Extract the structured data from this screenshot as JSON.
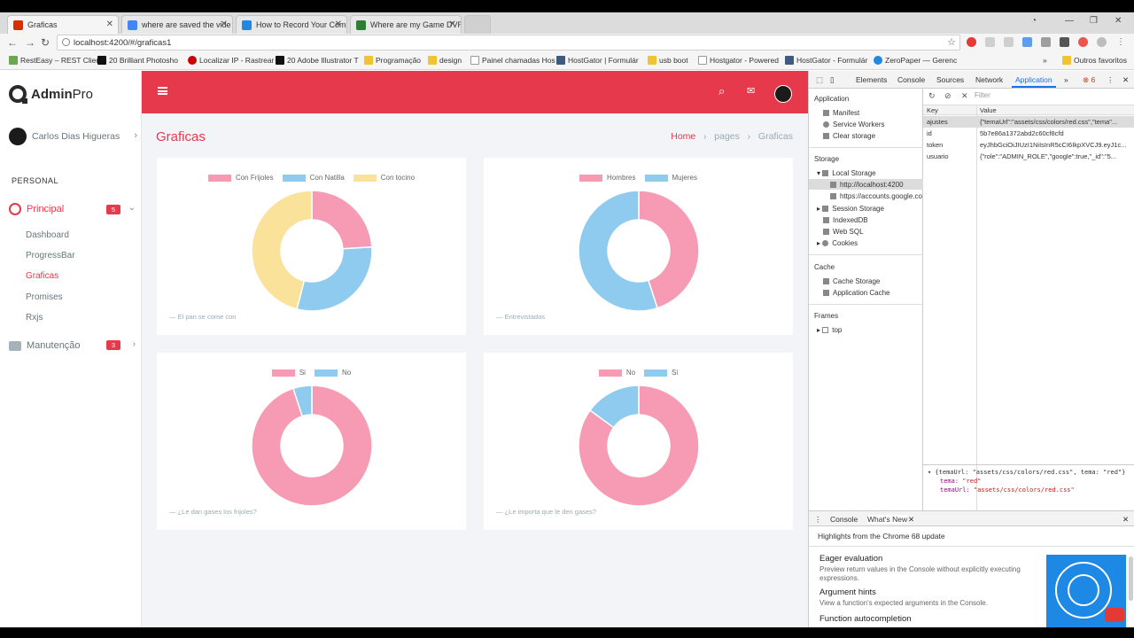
{
  "browser": {
    "tabs": [
      {
        "title": "Graficas",
        "color": "#dd2c00"
      },
      {
        "title": "where are saved the vide",
        "color": "#4285f4"
      },
      {
        "title": "How to Record Your Com",
        "color": "#1e88e5"
      },
      {
        "title": "Where are my Game DVR",
        "color": "#2e7d32"
      }
    ],
    "url": "localhost:4200/#/graficas1",
    "bookmarks": [
      {
        "label": "RestEasy – REST Clien",
        "color": "#6aa84f"
      },
      {
        "label": "20 Brilliant Photosho",
        "color": "#111111"
      },
      {
        "label": "Localizar IP - Rastrear",
        "color": "#cc0000"
      },
      {
        "label": "20 Adobe Illustrator T",
        "color": "#111111"
      },
      {
        "label": "Programação",
        "color": "#f1c232"
      },
      {
        "label": "design",
        "color": "#f1c232"
      },
      {
        "label": "Painel chamadas Hos",
        "color": "#999999"
      },
      {
        "label": "HostGator | Formulár",
        "color": "#3d5a80"
      },
      {
        "label": "usb boot",
        "color": "#f1c232"
      },
      {
        "label": "Hostgator - Powered",
        "color": "#999999"
      },
      {
        "label": "HostGator - Formulár",
        "color": "#3d5a80"
      },
      {
        "label": "ZeroPaper — Gerenc",
        "color": "#1e88e5"
      },
      {
        "label": "Outros favoritos",
        "color": "#f1c232"
      }
    ]
  },
  "app": {
    "logo_bold": "Admin",
    "logo_light": "Pro",
    "user_name": "Carlos Dias Higueras",
    "section": "PERSONAL",
    "menu_principal": "Principal",
    "menu_principal_badge": "5",
    "submenu": [
      "Dashboard",
      "ProgressBar",
      "Graficas",
      "Promises",
      "Rxjs"
    ],
    "menu_maintenance": "Manutenção",
    "menu_maintenance_badge": "3",
    "page_title": "Graficas",
    "breadcrumb": {
      "home": "Home",
      "pages": "pages",
      "current": "Graficas"
    },
    "accent": "#e6394b"
  },
  "charts": [
    {
      "caption": "— El pan se come con",
      "chart_data": {
        "type": "pie",
        "donut": true,
        "labels": [
          "Con Frijoles",
          "Con Natilla",
          "Con tocino"
        ],
        "values": [
          24,
          30,
          46
        ],
        "colors": [
          "#f79ab3",
          "#8fcbef",
          "#fbe29a"
        ]
      }
    },
    {
      "caption": "— Entrevistados",
      "chart_data": {
        "type": "pie",
        "donut": true,
        "labels": [
          "Hombres",
          "Mujeres"
        ],
        "values": [
          45,
          55
        ],
        "colors": [
          "#f79ab3",
          "#8fcbef"
        ]
      }
    },
    {
      "caption": "— ¿Le dan gases los frijoles?",
      "chart_data": {
        "type": "pie",
        "donut": true,
        "labels": [
          "Si",
          "No"
        ],
        "values": [
          95,
          5
        ],
        "colors": [
          "#f79ab3",
          "#8fcbef"
        ]
      }
    },
    {
      "caption": "— ¿Le importa que le den gases?",
      "chart_data": {
        "type": "pie",
        "donut": true,
        "labels": [
          "No",
          "Si"
        ],
        "values": [
          85,
          15
        ],
        "colors": [
          "#f79ab3",
          "#8fcbef"
        ]
      }
    }
  ],
  "devtools": {
    "tabs": [
      "Elements",
      "Console",
      "Sources",
      "Network",
      "Application"
    ],
    "error_count": "6",
    "sidebar": {
      "application_header": "Application",
      "application_items": [
        "Manifest",
        "Service Workers",
        "Clear storage"
      ],
      "storage_header": "Storage",
      "local_storage": "Local Storage",
      "local_storage_origins": [
        "http://localhost:4200",
        "https://accounts.google.co"
      ],
      "storage_items": [
        "Session Storage",
        "IndexedDB",
        "Web SQL",
        "Cookies"
      ],
      "cache_header": "Cache",
      "cache_items": [
        "Cache Storage",
        "Application Cache"
      ],
      "frames_header": "Frames",
      "frames_items": [
        "top"
      ]
    },
    "filter_placeholder": "Filter",
    "table": {
      "headers": [
        "Key",
        "Value"
      ],
      "rows": [
        {
          "key": "ajustes",
          "value": "{\"temaUrl\":\"assets/css/colors/red.css\",\"tema\"..."
        },
        {
          "key": "id",
          "value": "5b7e86a1372abd2c60cf8cfd"
        },
        {
          "key": "token",
          "value": "eyJhbGciOiJIUzI1NiIsInR5cCI6IkpXVCJ9.eyJ1c..."
        },
        {
          "key": "usuario",
          "value": "{\"role\":\"ADMIN_ROLE\",\"google\":true,\"_id\":\"5..."
        }
      ]
    },
    "preview": {
      "summary": "▾ {temaUrl: \"assets/css/colors/red.css\", tema: \"red\"}",
      "tema_key": "tema:",
      "tema_val": "\"red\"",
      "url_key": "temaUrl:",
      "url_val": "\"assets/css/colors/red.css\""
    },
    "drawer_tabs": [
      "Console",
      "What's New"
    ],
    "highlights": "Highlights from the Chrome 68 update",
    "features": [
      {
        "title": "Eager evaluation",
        "desc": "Preview return values in the Console without explicitly executing expressions."
      },
      {
        "title": "Argument hints",
        "desc": "View a function's expected arguments in the Console."
      },
      {
        "title": "Function autocompletion",
        "desc": ""
      }
    ]
  }
}
